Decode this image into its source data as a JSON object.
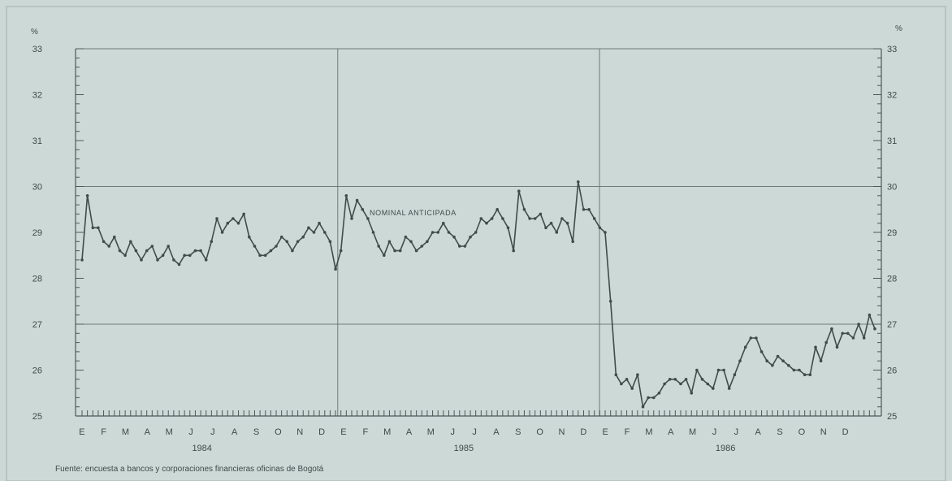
{
  "chart_data": {
    "type": "line",
    "ylabel_left": "%",
    "ylabel_right": "%",
    "ylim": [
      25,
      33
    ],
    "yticks": [
      "25",
      "26",
      "27",
      "28",
      "29",
      "30",
      "31",
      "32",
      "33"
    ],
    "grid_y": [
      27,
      30,
      33
    ],
    "months": [
      "E",
      "F",
      "M",
      "A",
      "M",
      "J",
      "J",
      "A",
      "S",
      "O",
      "N",
      "D",
      "E",
      "F",
      "M",
      "A",
      "M",
      "J",
      "J",
      "A",
      "S",
      "O",
      "N",
      "D",
      "E",
      "F",
      "M",
      "A",
      "M",
      "J",
      "J",
      "A",
      "S",
      "O",
      "N",
      "D"
    ],
    "years": [
      "1984",
      "1985",
      "1986"
    ],
    "annotation": "NOMINAL ANTICIPADA",
    "source": "Fuente: encuesta a bancos y corporaciones financieras oficinas de Bogotá",
    "series": [
      {
        "values": [
          28.4,
          29.8,
          29.1,
          29.1,
          28.8,
          28.7,
          28.9,
          28.6,
          28.5,
          28.8,
          28.6,
          28.4,
          28.6,
          28.7,
          28.4,
          28.5,
          28.7,
          28.4,
          28.3,
          28.5,
          28.5,
          28.6,
          28.6,
          28.4,
          28.8,
          29.3,
          29.0,
          29.2,
          29.3,
          29.2,
          29.4,
          28.9,
          28.7,
          28.5,
          28.5,
          28.6,
          28.7,
          28.9,
          28.8,
          28.6,
          28.8,
          28.9,
          29.1,
          29.0,
          29.2,
          29.0,
          28.8,
          28.2,
          28.6,
          29.8,
          29.3,
          29.7,
          29.5,
          29.3,
          29.0,
          28.7,
          28.5,
          28.8,
          28.6,
          28.6,
          28.9,
          28.8,
          28.6,
          28.7,
          28.8,
          29.0,
          29.0,
          29.2,
          29.0,
          28.9,
          28.7,
          28.7,
          28.9,
          29.0,
          29.3,
          29.2,
          29.3,
          29.5,
          29.3,
          29.1,
          28.6,
          29.9,
          29.5,
          29.3,
          29.3,
          29.4,
          29.1,
          29.2,
          29.0,
          29.3,
          29.2,
          28.8,
          30.1,
          29.5,
          29.5,
          29.3,
          29.1,
          29.0,
          27.5,
          25.9,
          25.7,
          25.8,
          25.6,
          25.9,
          25.2,
          25.4,
          25.4,
          25.5,
          25.7,
          25.8,
          25.8,
          25.7,
          25.8,
          25.5,
          26.0,
          25.8,
          25.7,
          25.6,
          26.0,
          26.0,
          25.6,
          25.9,
          26.2,
          26.5,
          26.7,
          26.7,
          26.4,
          26.2,
          26.1,
          26.3,
          26.2,
          26.1,
          26.0,
          26.0,
          25.9,
          25.9,
          26.5,
          26.2,
          26.6,
          26.9,
          26.5,
          26.8,
          26.8,
          26.7,
          27.0,
          26.7,
          27.2,
          26.9
        ]
      }
    ]
  }
}
